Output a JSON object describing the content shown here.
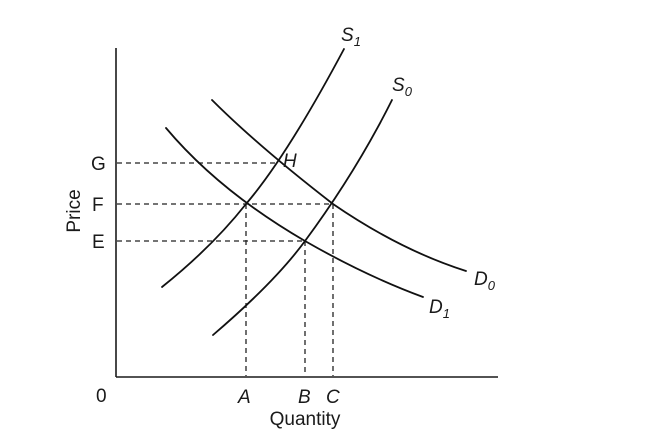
{
  "axes": {
    "y_label": "Price",
    "x_label": "Quantity",
    "origin": "0"
  },
  "price_ticks": [
    "G",
    "F",
    "E"
  ],
  "quantity_ticks": [
    "A",
    "B",
    "C"
  ],
  "curves": {
    "s1": {
      "letter": "S",
      "sub": "1"
    },
    "s0": {
      "letter": "S",
      "sub": "0"
    },
    "d0": {
      "letter": "D",
      "sub": "0"
    },
    "d1": {
      "letter": "D",
      "sub": "1"
    }
  },
  "points": {
    "h": "H"
  }
}
